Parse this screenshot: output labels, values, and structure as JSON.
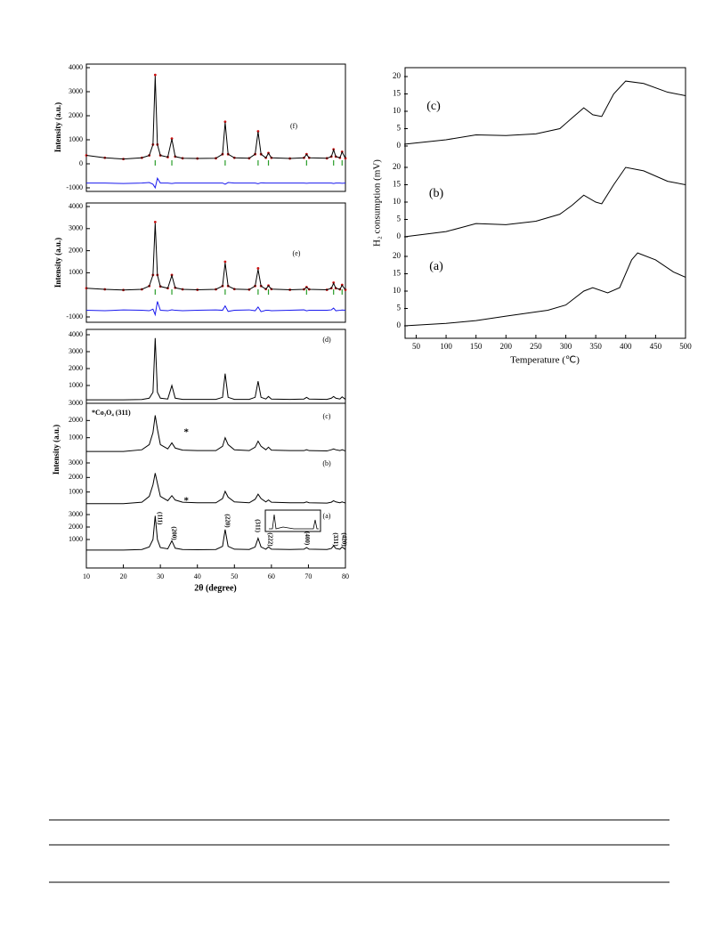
{
  "chart_data": [
    {
      "type": "line",
      "label": "(f)",
      "ylabel": "Intensity (a.u.)",
      "xlim": [
        10,
        80
      ],
      "ylim": [
        -1000,
        4000
      ],
      "yticks": [
        -1000,
        0,
        1000,
        2000,
        3000,
        4000
      ],
      "reflections": [
        28.6,
        33.1,
        47.5,
        56.4,
        59.2,
        69.5,
        76.8,
        79.1
      ],
      "reflection_color": "#2a9d2a",
      "x": [
        10,
        15,
        20,
        25,
        27,
        28,
        28.6,
        29.2,
        30,
        32,
        33.1,
        34,
        36,
        40,
        45,
        46.8,
        47.5,
        48.3,
        50,
        54,
        55.6,
        56.4,
        57.2,
        58.5,
        59.2,
        60,
        65,
        68.8,
        69.5,
        70.2,
        75,
        76.2,
        76.8,
        77.4,
        78.5,
        79.1,
        80
      ],
      "series": [
        {
          "style": "markers",
          "color": "#cc1111",
          "values": [
            350,
            250,
            200,
            250,
            350,
            800,
            3700,
            800,
            350,
            280,
            1050,
            300,
            230,
            220,
            230,
            400,
            1750,
            400,
            250,
            230,
            400,
            1350,
            400,
            250,
            450,
            250,
            220,
            250,
            400,
            250,
            230,
            300,
            600,
            300,
            250,
            500,
            230
          ]
        },
        {
          "style": "line",
          "color": "#000000",
          "values": [
            350,
            250,
            200,
            250,
            350,
            800,
            3650,
            800,
            350,
            280,
            1030,
            300,
            230,
            220,
            230,
            400,
            1720,
            400,
            250,
            230,
            400,
            1330,
            400,
            250,
            440,
            250,
            220,
            250,
            390,
            250,
            230,
            300,
            580,
            300,
            250,
            490,
            230
          ]
        },
        {
          "style": "line",
          "color": "#1a1aee",
          "values": [
            -800,
            -800,
            -820,
            -800,
            -780,
            -850,
            -1000,
            -600,
            -800,
            -800,
            -820,
            -800,
            -800,
            -800,
            -800,
            -800,
            -850,
            -780,
            -800,
            -800,
            -800,
            -830,
            -790,
            -800,
            -800,
            -800,
            -800,
            -800,
            -810,
            -800,
            -800,
            -800,
            -820,
            -800,
            -800,
            -810,
            -800
          ]
        }
      ]
    },
    {
      "type": "line",
      "label": "(e)",
      "ylabel": "Intensity (a.u.)",
      "xlim": [
        10,
        80
      ],
      "ylim": [
        -1000,
        4000
      ],
      "yticks": [
        -1000,
        1000,
        2000,
        3000,
        4000
      ],
      "reflections": [
        28.6,
        33.1,
        47.5,
        56.4,
        59.2,
        69.5,
        76.8,
        79.1
      ],
      "reflection_color": "#2a9d2a",
      "x": [
        10,
        15,
        20,
        25,
        27,
        28,
        28.6,
        29.2,
        30,
        32,
        33.1,
        34,
        36,
        40,
        45,
        46.8,
        47.5,
        48.3,
        50,
        54,
        55.6,
        56.4,
        57.2,
        58.5,
        59.2,
        60,
        65,
        68.8,
        69.5,
        70.2,
        75,
        76.2,
        76.8,
        77.4,
        78.5,
        79.1,
        80
      ],
      "series": [
        {
          "style": "markers",
          "color": "#cc1111",
          "values": [
            300,
            250,
            220,
            250,
            400,
            900,
            3300,
            900,
            380,
            300,
            900,
            320,
            250,
            230,
            250,
            400,
            1500,
            400,
            260,
            240,
            400,
            1200,
            400,
            260,
            420,
            260,
            230,
            250,
            350,
            250,
            230,
            300,
            550,
            300,
            250,
            450,
            230
          ]
        },
        {
          "style": "line",
          "color": "#000000",
          "values": [
            300,
            250,
            220,
            250,
            400,
            900,
            3250,
            900,
            380,
            300,
            880,
            320,
            250,
            230,
            250,
            400,
            1450,
            400,
            260,
            240,
            400,
            1150,
            400,
            260,
            410,
            260,
            230,
            250,
            340,
            250,
            230,
            300,
            520,
            300,
            250,
            430,
            230
          ]
        },
        {
          "style": "line",
          "color": "#1a1aee",
          "values": [
            -700,
            -720,
            -680,
            -700,
            -720,
            -650,
            -900,
            -300,
            -700,
            -720,
            -680,
            -700,
            -720,
            -700,
            -680,
            -700,
            -500,
            -750,
            -700,
            -680,
            -720,
            -550,
            -760,
            -700,
            -700,
            -720,
            -700,
            -680,
            -720,
            -700,
            -700,
            -680,
            -600,
            -720,
            -700,
            -690,
            -700
          ]
        }
      ]
    },
    {
      "type": "line",
      "label": "(d)",
      "xlim": [
        10,
        80
      ],
      "ylim": [
        0,
        4000
      ],
      "yticks": [
        1000,
        2000,
        3000,
        4000
      ],
      "x": [
        10,
        15,
        20,
        25,
        27,
        28,
        28.6,
        29.2,
        30,
        32,
        33.1,
        34,
        36,
        40,
        45,
        46.8,
        47.5,
        48.3,
        50,
        54,
        55.6,
        56.4,
        57.2,
        58.5,
        59.2,
        60,
        65,
        68.8,
        69.5,
        70.2,
        75,
        76.2,
        76.8,
        77.4,
        78.5,
        79.1,
        80
      ],
      "series": [
        {
          "style": "line",
          "color": "#000000",
          "values": [
            150,
            150,
            150,
            170,
            250,
            600,
            3800,
            600,
            250,
            200,
            1000,
            250,
            180,
            180,
            180,
            300,
            1700,
            300,
            180,
            180,
            300,
            1250,
            300,
            200,
            350,
            200,
            180,
            200,
            300,
            200,
            180,
            250,
            350,
            250,
            200,
            330,
            180
          ]
        }
      ]
    },
    {
      "type": "line",
      "label": "(c)",
      "ylabel": "Intensity (a.u.)",
      "note": "*Co₃O₄ (311)",
      "xlim": [
        10,
        80
      ],
      "ylim": [
        0,
        3000
      ],
      "yticks": [
        1000,
        2000,
        3000
      ],
      "annotations": [
        {
          "text": "*",
          "x": 37,
          "y": 1300
        }
      ],
      "x": [
        10,
        15,
        20,
        25,
        27,
        28,
        28.6,
        29.2,
        30,
        32,
        33.1,
        34,
        36,
        40,
        45,
        46.8,
        47.5,
        48.3,
        50,
        54,
        55.6,
        56.4,
        57.2,
        58.5,
        59.2,
        60,
        65,
        68.8,
        69.5,
        70.2,
        75,
        76.2,
        76.8,
        77.4,
        78.5,
        79.1,
        80
      ],
      "series": [
        {
          "style": "line",
          "color": "#000000",
          "values": [
            200,
            200,
            200,
            300,
            600,
            1300,
            2300,
            1500,
            600,
            350,
            700,
            400,
            280,
            250,
            250,
            500,
            1000,
            600,
            300,
            250,
            450,
            800,
            500,
            300,
            450,
            280,
            250,
            250,
            300,
            250,
            230,
            300,
            350,
            300,
            250,
            300,
            230
          ]
        }
      ]
    },
    {
      "type": "line",
      "label": "(b)",
      "xlim": [
        10,
        80
      ],
      "ylim": [
        0,
        3000
      ],
      "yticks": [
        1000,
        2000,
        3000
      ],
      "annotations": [
        {
          "text": "*",
          "x": 37,
          "y": 370
        }
      ],
      "x": [
        10,
        15,
        20,
        25,
        27,
        28,
        28.6,
        29.2,
        30,
        32,
        33.1,
        34,
        36,
        40,
        45,
        46.8,
        47.5,
        48.3,
        50,
        54,
        55.6,
        56.4,
        57.2,
        58.5,
        59.2,
        60,
        65,
        68.8,
        69.5,
        70.2,
        75,
        76.2,
        76.8,
        77.4,
        78.5,
        79.1,
        80
      ],
      "series": [
        {
          "style": "line",
          "color": "#000000",
          "values": [
            200,
            200,
            200,
            300,
            700,
            1500,
            2300,
            1600,
            700,
            400,
            750,
            450,
            300,
            260,
            260,
            550,
            1050,
            650,
            320,
            260,
            500,
            850,
            550,
            320,
            450,
            300,
            260,
            260,
            320,
            260,
            240,
            300,
            400,
            320,
            260,
            320,
            240
          ]
        }
      ]
    },
    {
      "type": "line",
      "label": "(a)",
      "xlabel": "2θ (degree)",
      "xlim": [
        10,
        80
      ],
      "xticks": [
        10,
        20,
        30,
        40,
        50,
        60,
        70,
        80
      ],
      "ylim": [
        0,
        3000
      ],
      "yticks": [
        1000,
        2000,
        3000
      ],
      "annotations": [
        {
          "text": "(111)",
          "x": 29.8,
          "y": 2700
        },
        {
          "text": "(200)",
          "x": 33.6,
          "y": 1500
        },
        {
          "text": "(220)",
          "x": 48,
          "y": 2500
        },
        {
          "text": "(311)",
          "x": 56.2,
          "y": 2100
        },
        {
          "text": "(222)",
          "x": 59.6,
          "y": 1000
        },
        {
          "text": "(400)",
          "x": 69.6,
          "y": 1100
        },
        {
          "text": "(331)",
          "x": 77.2,
          "y": 1000
        },
        {
          "text": "(420)",
          "x": 79.6,
          "y": 1000
        }
      ],
      "x": [
        10,
        15,
        20,
        25,
        27,
        28,
        28.6,
        29.2,
        30,
        32,
        33.1,
        34,
        36,
        40,
        45,
        46.8,
        47.5,
        48.3,
        50,
        54,
        55.6,
        56.4,
        57.2,
        58.5,
        59.2,
        60,
        65,
        68.8,
        69.5,
        70.2,
        75,
        76.2,
        76.8,
        77.4,
        78.5,
        79.1,
        80
      ],
      "series": [
        {
          "style": "line",
          "color": "#000000",
          "values": [
            150,
            150,
            150,
            200,
            400,
            1000,
            2900,
            1000,
            350,
            250,
            900,
            300,
            200,
            180,
            200,
            450,
            1800,
            450,
            220,
            200,
            400,
            1100,
            400,
            220,
            400,
            220,
            200,
            220,
            350,
            220,
            200,
            280,
            500,
            280,
            220,
            400,
            200
          ]
        }
      ]
    },
    {
      "type": "line",
      "label": "(c)",
      "xlim": [
        30,
        500
      ],
      "ylim": [
        0,
        20
      ],
      "yticks": [
        0,
        5,
        10,
        15,
        20
      ],
      "x": [
        30,
        100,
        150,
        200,
        250,
        290,
        310,
        330,
        345,
        360,
        380,
        400,
        430,
        470,
        500
      ],
      "series": [
        {
          "style": "line",
          "color": "#000000",
          "values": [
            0.5,
            1.8,
            3.2,
            3,
            3.5,
            5,
            8,
            11,
            9,
            8.5,
            15,
            18.7,
            18,
            15.5,
            14.5
          ]
        }
      ]
    },
    {
      "type": "line",
      "label": "(b)",
      "ylabel": "H₂ consumption (mV)",
      "xlim": [
        30,
        500
      ],
      "ylim": [
        0,
        20
      ],
      "yticks": [
        0,
        5,
        10,
        15,
        20
      ],
      "x": [
        30,
        100,
        150,
        200,
        250,
        290,
        310,
        330,
        350,
        360,
        380,
        400,
        430,
        470,
        500
      ],
      "series": [
        {
          "style": "line",
          "color": "#000000",
          "values": [
            0,
            1.5,
            3.8,
            3.5,
            4.5,
            6.5,
            9,
            12,
            10,
            9.5,
            15,
            20,
            19,
            16,
            15
          ]
        }
      ]
    },
    {
      "type": "line",
      "label": "(a)",
      "xlabel": "Temperature (℃)",
      "xlim": [
        30,
        500
      ],
      "xticks": [
        50,
        100,
        150,
        200,
        250,
        300,
        350,
        400,
        450,
        500
      ],
      "ylim": [
        0,
        20
      ],
      "yticks": [
        0,
        5,
        10,
        15,
        20
      ],
      "x": [
        30,
        100,
        150,
        200,
        250,
        270,
        300,
        330,
        345,
        370,
        390,
        410,
        420,
        450,
        480,
        500
      ],
      "series": [
        {
          "style": "line",
          "color": "#000000",
          "values": [
            0,
            0.7,
            1.5,
            2.8,
            4,
            4.5,
            6,
            10,
            11,
            9.5,
            11,
            19,
            21,
            19,
            15.5,
            14
          ]
        }
      ]
    }
  ]
}
